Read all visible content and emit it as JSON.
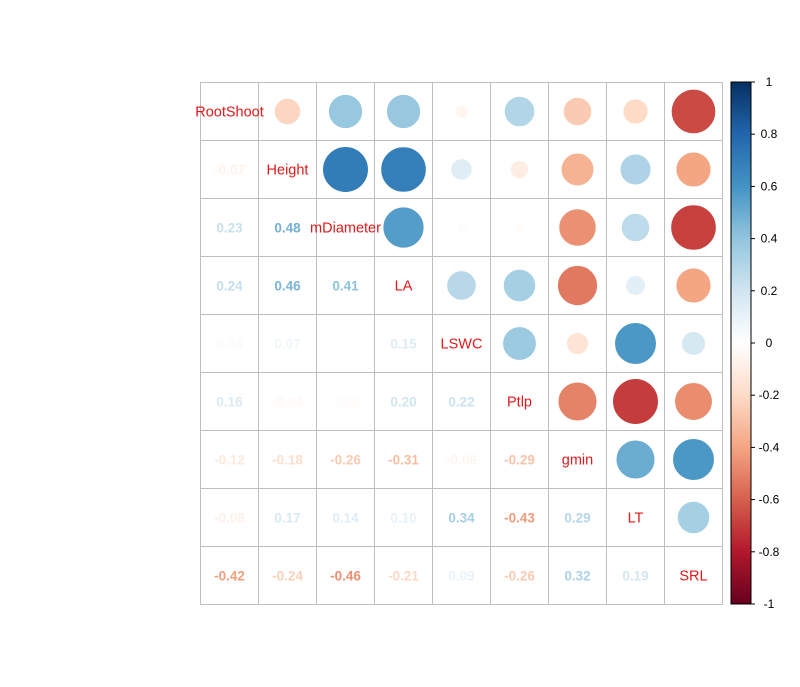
{
  "chart_data": {
    "type": "heatmap",
    "variables": [
      "RootShoot",
      "Height",
      "mDiameter",
      "LA",
      "LSWC",
      "Ptlp",
      "gmin",
      "LT",
      "SRL"
    ],
    "lower_triangle_text": [
      [],
      [
        -0.07
      ],
      [
        0.23,
        0.48
      ],
      [
        0.24,
        0.46,
        0.41
      ],
      [
        0.03,
        0.07,
        0.0,
        0.15
      ],
      [
        0.16,
        -0.04,
        -0.02,
        0.2,
        0.22
      ],
      [
        -0.12,
        -0.18,
        -0.26,
        -0.31,
        -0.06,
        -0.29
      ],
      [
        -0.08,
        0.17,
        0.14,
        0.1,
        0.34,
        -0.43,
        0.29
      ],
      [
        -0.42,
        -0.24,
        -0.46,
        -0.21,
        0.09,
        -0.26,
        0.32,
        0.19
      ]
    ],
    "upper_triangle_circles": [
      [
        -0.22,
        0.38,
        0.38,
        -0.05,
        0.3,
        -0.26,
        -0.2,
        -0.66
      ],
      [
        0.7,
        0.69,
        0.14,
        -0.1,
        -0.35,
        0.31,
        -0.4
      ],
      [
        0.56,
        0.02,
        -0.02,
        -0.46,
        0.26,
        -0.69
      ],
      [
        0.28,
        0.34,
        -0.53,
        0.12,
        -0.4
      ],
      [
        0.37,
        -0.15,
        0.58,
        0.18
      ],
      [
        -0.5,
        -0.7,
        -0.47
      ],
      [
        0.5,
        0.58
      ],
      [
        0.34
      ],
      []
    ],
    "legend": {
      "position": "right",
      "ticks": [
        "1",
        "0.8",
        "0.6",
        "0.4",
        "0.2",
        "0",
        "-0.2",
        "-0.4",
        "-0.6",
        "-0.8",
        "-1"
      ],
      "range": [
        -1,
        1
      ]
    },
    "label_color": "#e0191a",
    "grid": true
  }
}
